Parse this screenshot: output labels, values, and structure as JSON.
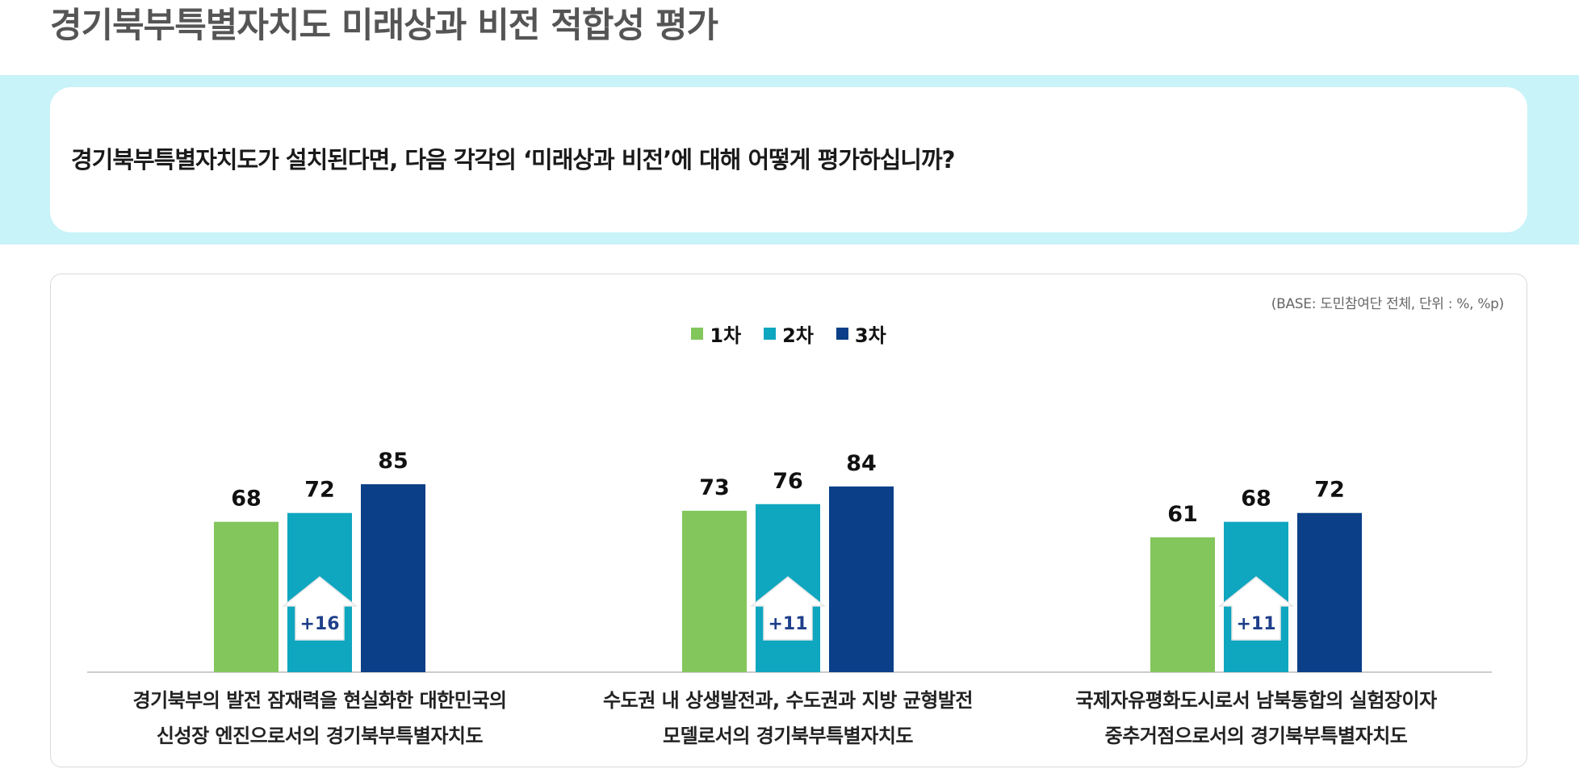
{
  "page": {
    "title": "경기북부특별자치도 미래상과 비전 적합성 평가",
    "question": "경기북부특별자치도가 설치된다면, 다음 각각의 ‘미래상과 비전’에 대해 어떻게 평가하십니까?",
    "base_note": "(BASE: 도민참여단 전체,  단위 : %, %p)"
  },
  "colors": {
    "title": "#555555",
    "band": "#c8f3f8",
    "arrow_text": "#1f3f8a",
    "baseline": "#cccccc"
  },
  "chart_data": {
    "type": "bar",
    "categories": [
      [
        "경기북부의 발전 잠재력을 현실화한 대한민국의",
        "신성장 엔진으로서의 경기북부특별자치도"
      ],
      [
        "수도권 내 상생발전과, 수도권과 지방 균형발전",
        "모델로서의 경기북부특별자치도"
      ],
      [
        "국제자유평화도시로서 남북통합의 실험장이자",
        "중추거점으로서의 경기북부특별자치도"
      ]
    ],
    "series": [
      {
        "name": "1차",
        "color": "#82c65c",
        "values": [
          68,
          73,
          61
        ]
      },
      {
        "name": "2차",
        "color": "#0fa6bf",
        "values": [
          72,
          76,
          68
        ]
      },
      {
        "name": "3차",
        "color": "#0b3f87",
        "values": [
          85,
          84,
          72
        ]
      }
    ],
    "changes": [
      "+16",
      "+11",
      "+11"
    ],
    "ylim": [
      0,
      100
    ],
    "legend_position": "top-center",
    "grid": false
  }
}
